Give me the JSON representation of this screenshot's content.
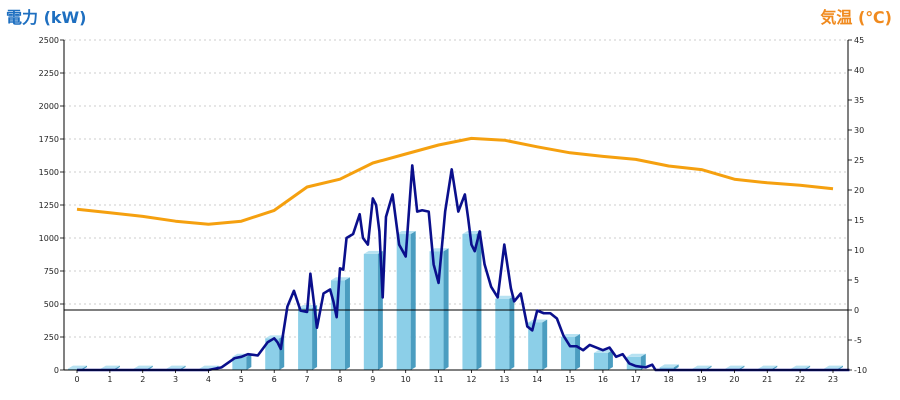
{
  "chart_data": {
    "type": "bar+line",
    "left_axis_label": "電力 (kW)",
    "right_axis_label": "気温 (℃)",
    "y_left": {
      "min": 0,
      "max": 2500,
      "ticks": [
        0,
        250,
        500,
        750,
        1000,
        1250,
        1500,
        1750,
        2000,
        2250,
        2500
      ]
    },
    "y_right": {
      "min": -10,
      "max": 45,
      "ticks": [
        -10,
        -5,
        0,
        5,
        10,
        15,
        20,
        25,
        30,
        35,
        40,
        45
      ]
    },
    "x_ticks": [
      "0",
      "1",
      "2",
      "3",
      "4",
      "5",
      "6",
      "7",
      "8",
      "9",
      "10",
      "11",
      "12",
      "13",
      "14",
      "15",
      "16",
      "17",
      "18",
      "19",
      "20",
      "21",
      "22",
      "23"
    ],
    "grid": true,
    "colors": {
      "bar": "#8ccfe8",
      "bar_side": "#4b9dc0",
      "power_line": "#0a0f8c",
      "temp_line": "#f5a00f",
      "zero_line": "#000000",
      "left_label": "#1e6fc0",
      "right_label": "#f08a1e"
    },
    "bars_hourly_kw": [
      10,
      10,
      10,
      10,
      10,
      100,
      240,
      470,
      680,
      880,
      1030,
      900,
      1030,
      540,
      360,
      250,
      130,
      100,
      20,
      10,
      10,
      10,
      10,
      10
    ],
    "power_line_kw": [
      [
        0,
        0
      ],
      [
        4,
        0
      ],
      [
        4.4,
        20
      ],
      [
        4.8,
        90
      ],
      [
        5,
        100
      ],
      [
        5.2,
        120
      ],
      [
        5.5,
        110
      ],
      [
        5.8,
        210
      ],
      [
        6,
        240
      ],
      [
        6.1,
        210
      ],
      [
        6.2,
        160
      ],
      [
        6.4,
        480
      ],
      [
        6.6,
        600
      ],
      [
        6.8,
        450
      ],
      [
        7,
        440
      ],
      [
        7.1,
        730
      ],
      [
        7.3,
        320
      ],
      [
        7.5,
        580
      ],
      [
        7.7,
        610
      ],
      [
        7.8,
        520
      ],
      [
        7.9,
        400
      ],
      [
        8,
        770
      ],
      [
        8.1,
        760
      ],
      [
        8.2,
        1000
      ],
      [
        8.4,
        1030
      ],
      [
        8.6,
        1180
      ],
      [
        8.7,
        1000
      ],
      [
        8.85,
        950
      ],
      [
        9,
        1300
      ],
      [
        9.1,
        1250
      ],
      [
        9.2,
        1050
      ],
      [
        9.3,
        550
      ],
      [
        9.4,
        1160
      ],
      [
        9.6,
        1330
      ],
      [
        9.8,
        950
      ],
      [
        10,
        860
      ],
      [
        10.2,
        1550
      ],
      [
        10.35,
        1200
      ],
      [
        10.5,
        1210
      ],
      [
        10.7,
        1200
      ],
      [
        10.85,
        800
      ],
      [
        11,
        660
      ],
      [
        11.2,
        1200
      ],
      [
        11.4,
        1520
      ],
      [
        11.6,
        1200
      ],
      [
        11.8,
        1330
      ],
      [
        11.9,
        1150
      ],
      [
        12,
        950
      ],
      [
        12.1,
        900
      ],
      [
        12.25,
        1050
      ],
      [
        12.4,
        800
      ],
      [
        12.6,
        630
      ],
      [
        12.8,
        550
      ],
      [
        13,
        950
      ],
      [
        13.2,
        620
      ],
      [
        13.3,
        520
      ],
      [
        13.5,
        580
      ],
      [
        13.7,
        330
      ],
      [
        13.85,
        300
      ],
      [
        14,
        450
      ],
      [
        14.2,
        430
      ],
      [
        14.4,
        430
      ],
      [
        14.6,
        390
      ],
      [
        14.8,
        260
      ],
      [
        15,
        180
      ],
      [
        15.2,
        180
      ],
      [
        15.4,
        150
      ],
      [
        15.6,
        190
      ],
      [
        15.8,
        170
      ],
      [
        16,
        150
      ],
      [
        16.2,
        170
      ],
      [
        16.4,
        100
      ],
      [
        16.6,
        120
      ],
      [
        16.8,
        50
      ],
      [
        17,
        30
      ],
      [
        17.3,
        20
      ],
      [
        17.5,
        40
      ],
      [
        17.6,
        0
      ],
      [
        23.5,
        0
      ]
    ],
    "temperature_c": [
      16.8,
      16.2,
      15.6,
      14.8,
      14.3,
      14.8,
      16.6,
      20.5,
      21.8,
      24.5,
      26.0,
      27.5,
      28.6,
      28.3,
      27.2,
      26.2,
      25.6,
      25.1,
      24.0,
      23.4,
      21.8,
      21.2,
      20.8,
      20.2
    ]
  }
}
